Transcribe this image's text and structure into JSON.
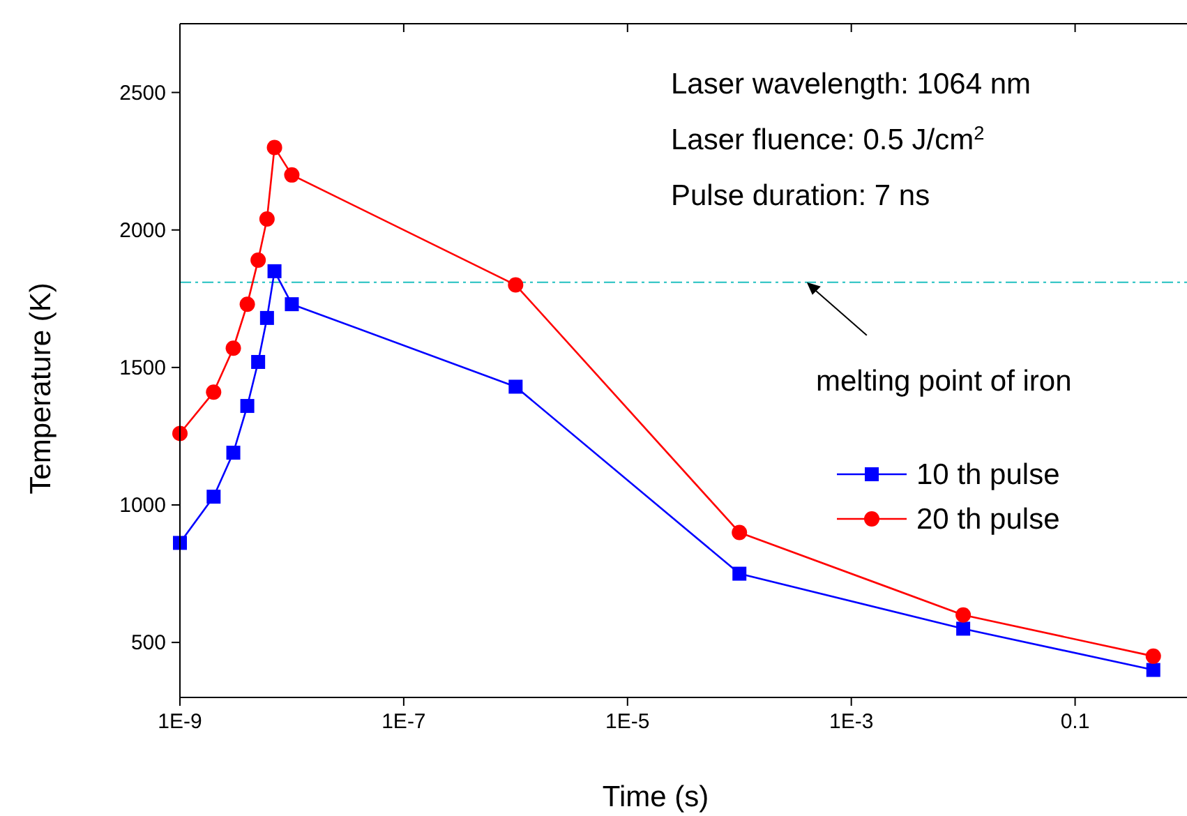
{
  "chart_data": {
    "type": "line",
    "xlabel": "Time (s)",
    "ylabel": "Temperature (K)",
    "log": "x",
    "xlim": [
      1e-09,
      1
    ],
    "xticks": [
      {
        "value": 1e-09,
        "label": "1E-9"
      },
      {
        "value": 1e-07,
        "label": "1E-7"
      },
      {
        "value": 1e-05,
        "label": "1E-5"
      },
      {
        "value": 0.001,
        "label": "1E-3"
      },
      0.1
    ],
    "ylim": [
      300,
      2750
    ],
    "yticks": [
      500,
      1000,
      1500,
      2000,
      2500
    ],
    "grid": false,
    "legend": "right",
    "line_style": "solid",
    "series": [
      {
        "name": "10 th pulse",
        "color": "#0000ff",
        "marker": "square",
        "x": [
          1e-09,
          2e-09,
          3e-09,
          4e-09,
          5e-09,
          6e-09,
          7e-09,
          1e-08,
          1e-06,
          0.0001,
          0.01,
          0.5
        ],
        "values": [
          862,
          1030,
          1190,
          1360,
          1520,
          1680,
          1850,
          1730,
          1430,
          750,
          550,
          400
        ]
      },
      {
        "name": "20 th pulse",
        "color": "#ff0000",
        "marker": "circle",
        "x": [
          1e-09,
          2e-09,
          3e-09,
          4e-09,
          5e-09,
          6e-09,
          7e-09,
          1e-08,
          1e-06,
          0.0001,
          0.01,
          0.5
        ],
        "values": [
          1260,
          1410,
          1570,
          1730,
          1890,
          2040,
          2300,
          2200,
          1800,
          900,
          600,
          450
        ]
      }
    ],
    "ref_lines": [
      {
        "axis": "y",
        "value": 1810,
        "color": "#20c0c0",
        "line_style": "dashdot"
      }
    ],
    "annotations": [
      "Laser wavelength: 1064 nm",
      "Laser fluence: 0.5 J/cm$^{2}$",
      "Pulse duration: 7 ns",
      {
        "text": "melting point of iron",
        "x": 0.0004,
        "y": 1810
      }
    ]
  }
}
